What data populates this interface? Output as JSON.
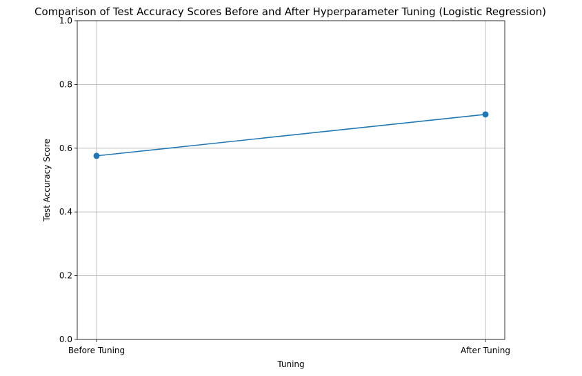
{
  "chart_data": {
    "type": "line",
    "title": "Comparison of Test Accuracy Scores Before and After Hyperparameter Tuning (Logistic Regression)",
    "xlabel": "Tuning",
    "ylabel": "Test Accuracy Score",
    "categories": [
      "Before Tuning",
      "After Tuning"
    ],
    "series": [
      {
        "values": [
          0.576,
          0.706
        ],
        "color": "#1f77b4",
        "marker": "circle"
      }
    ],
    "ylim": [
      0.0,
      1.0
    ],
    "yticks": [
      "0.0",
      "0.2",
      "0.4",
      "0.6",
      "0.8",
      "1.0"
    ],
    "grid": true,
    "legend": "none"
  }
}
